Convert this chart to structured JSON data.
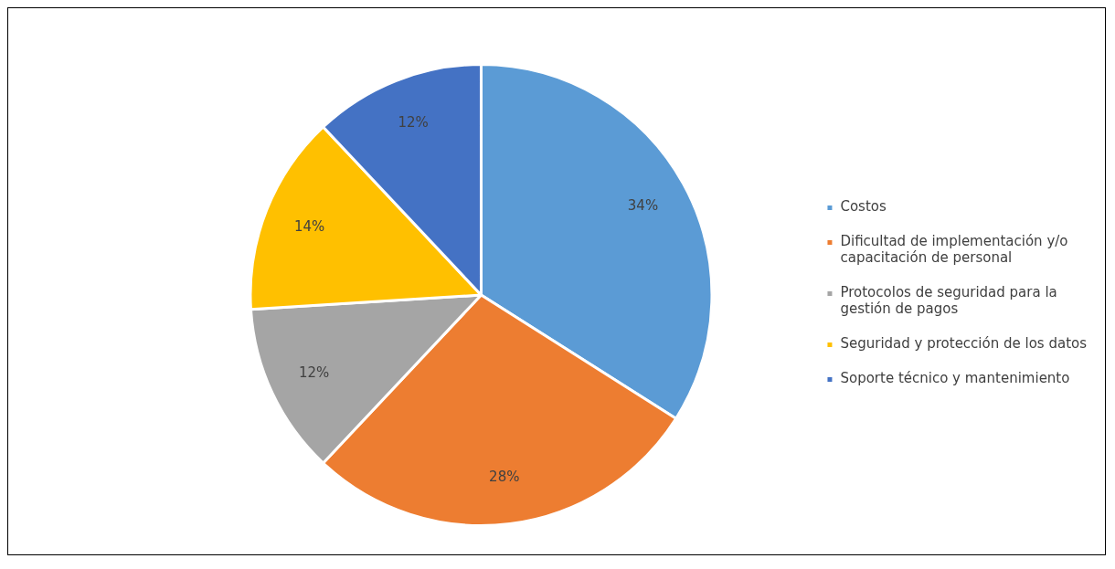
{
  "chart_data": {
    "type": "pie",
    "categories": [
      "Costos",
      "Dificultad de implementación y/o capacitación de personal",
      "Protocolos de seguridad para la gestión de pagos",
      "Seguridad y protección de los datos",
      "Soporte técnico y mantenimiento"
    ],
    "values": [
      34,
      28,
      12,
      14,
      12
    ],
    "colors": [
      "#5b9bd5",
      "#ed7d31",
      "#a5a5a5",
      "#ffc000",
      "#4472c4"
    ],
    "value_labels": [
      "34%",
      "28%",
      "12%",
      "14%",
      "12%"
    ],
    "legend": "right"
  }
}
